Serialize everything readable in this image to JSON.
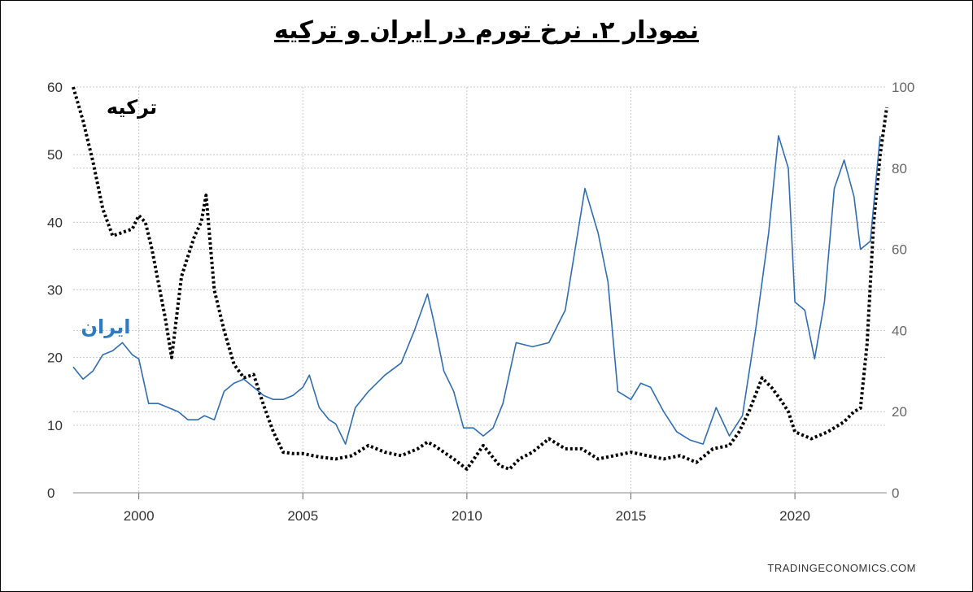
{
  "title": "نمودار ۲. نرخ تورم در ایران و ترکیه",
  "source": "TRADINGECONOMICS.COM",
  "chart_data": {
    "type": "line",
    "xlim": [
      1998,
      2022.8
    ],
    "x_ticks": [
      "2000",
      "2005",
      "2010",
      "2015",
      "2020"
    ],
    "y_left": {
      "range": [
        0,
        60
      ],
      "ticks": [
        "0",
        "10",
        "20",
        "30",
        "40",
        "50",
        "60"
      ]
    },
    "y_right": {
      "range": [
        0,
        100
      ],
      "ticks": [
        "0",
        "20",
        "40",
        "60",
        "80",
        "100"
      ]
    },
    "grid": true,
    "colors": {
      "turkey": "#000000",
      "iran": "#2f6db3",
      "grid": "#c8c8c8"
    },
    "series": [
      {
        "name": "ترکیه",
        "axis": "left",
        "style": "dotted",
        "x": [
          1998.0,
          1998.3,
          1998.6,
          1998.9,
          1999.2,
          1999.5,
          1999.8,
          2000.0,
          2000.2,
          2000.4,
          2000.6,
          2000.8,
          2001.0,
          2001.1,
          2001.3,
          2001.5,
          2001.7,
          2001.9,
          2002.05,
          2002.3,
          2002.6,
          2002.9,
          2003.2,
          2003.5,
          2003.8,
          2004.1,
          2004.4,
          2004.7,
          2005.0,
          2005.5,
          2006.0,
          2006.5,
          2007.0,
          2007.5,
          2008.0,
          2008.5,
          2008.8,
          2009.0,
          2009.3,
          2009.6,
          2010.0,
          2010.5,
          2011.0,
          2011.3,
          2011.6,
          2012.0,
          2012.5,
          2013.0,
          2013.5,
          2014.0,
          2014.5,
          2015.0,
          2015.5,
          2016.0,
          2016.5,
          2017.0,
          2017.5,
          2018.0,
          2018.3,
          2018.6,
          2018.8,
          2019.0,
          2019.3,
          2019.6,
          2019.8,
          2020.0,
          2020.5,
          2021.0,
          2021.5,
          2021.8,
          2022.0,
          2022.2,
          2022.4,
          2022.6,
          2022.8
        ],
        "values": [
          60,
          55,
          49,
          42,
          38,
          38.5,
          39,
          41,
          40,
          36,
          31,
          26,
          20,
          24,
          32,
          35,
          38,
          40,
          44,
          30,
          24,
          19,
          17,
          17.5,
          13,
          9,
          6,
          5.8,
          5.8,
          5.3,
          5.0,
          5.5,
          7.0,
          6.0,
          5.5,
          6.5,
          7.5,
          7.0,
          6.0,
          5.0,
          3.5,
          7.0,
          4.0,
          3.5,
          5.0,
          6.0,
          8.0,
          6.5,
          6.5,
          5.0,
          5.5,
          6.0,
          5.5,
          5.0,
          5.5,
          4.5,
          6.5,
          7.0,
          9.0,
          12.0,
          14.5,
          17.0,
          15.5,
          13.5,
          12.0,
          9.0,
          8.0,
          9.0,
          10.5,
          12.0,
          12.5,
          22.0,
          40.0,
          50.0,
          57.0
        ]
      },
      {
        "name": "ایران",
        "axis": "right",
        "style": "solid",
        "x": [
          1998.0,
          1998.3,
          1998.6,
          1998.9,
          1999.2,
          1999.5,
          1999.8,
          2000.0,
          2000.3,
          2000.6,
          2000.9,
          2001.2,
          2001.5,
          2001.8,
          2002.0,
          2002.3,
          2002.6,
          2002.9,
          2003.2,
          2003.5,
          2003.8,
          2004.1,
          2004.4,
          2004.7,
          2005.0,
          2005.2,
          2005.5,
          2005.8,
          2006.0,
          2006.3,
          2006.6,
          2007.0,
          2007.5,
          2008.0,
          2008.4,
          2008.8,
          2009.0,
          2009.3,
          2009.6,
          2009.9,
          2010.2,
          2010.5,
          2010.8,
          2011.1,
          2011.5,
          2012.0,
          2012.5,
          2013.0,
          2013.3,
          2013.6,
          2014.0,
          2014.3,
          2014.6,
          2015.0,
          2015.3,
          2015.6,
          2016.0,
          2016.4,
          2016.8,
          2017.2,
          2017.6,
          2018.0,
          2018.4,
          2018.8,
          2019.2,
          2019.5,
          2019.8,
          2020.0,
          2020.3,
          2020.6,
          2020.9,
          2021.2,
          2021.5,
          2021.8,
          2022.0,
          2022.3,
          2022.6
        ],
        "values": [
          31,
          28,
          30,
          34,
          35,
          37,
          34,
          33,
          22,
          22,
          21,
          20,
          18,
          18,
          19,
          18,
          25,
          27,
          28,
          26,
          24,
          23,
          23,
          24,
          26,
          29,
          21,
          18,
          17,
          12,
          21,
          25,
          29,
          32,
          40,
          49,
          42,
          30,
          25,
          16,
          16,
          14,
          16,
          22,
          37,
          36,
          37,
          45,
          60,
          75,
          64,
          52,
          25,
          23,
          27,
          26,
          20,
          15,
          13,
          12,
          21,
          14,
          19,
          40,
          64,
          88,
          80,
          47,
          45,
          33,
          47,
          75,
          82,
          73,
          60,
          62,
          88
        ]
      }
    ]
  }
}
